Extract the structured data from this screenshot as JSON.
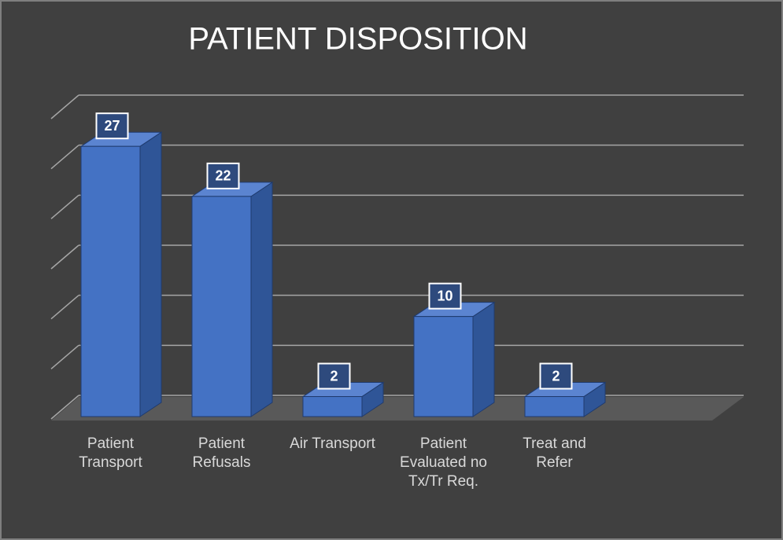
{
  "chart_data": {
    "type": "bar3d",
    "title": "PATIENT DISPOSITION",
    "categories": [
      "Patient Transport",
      "Patient Refusals",
      "Air Transport",
      "Patient Evaluated no Tx/Tr Req.",
      "Treat and Refer"
    ],
    "values": [
      27,
      22,
      2,
      10,
      2
    ],
    "color": "#4472c4",
    "ylim": [
      0,
      30
    ],
    "yticks": [
      0,
      5,
      10,
      15,
      20,
      25,
      30
    ],
    "grid": true
  }
}
